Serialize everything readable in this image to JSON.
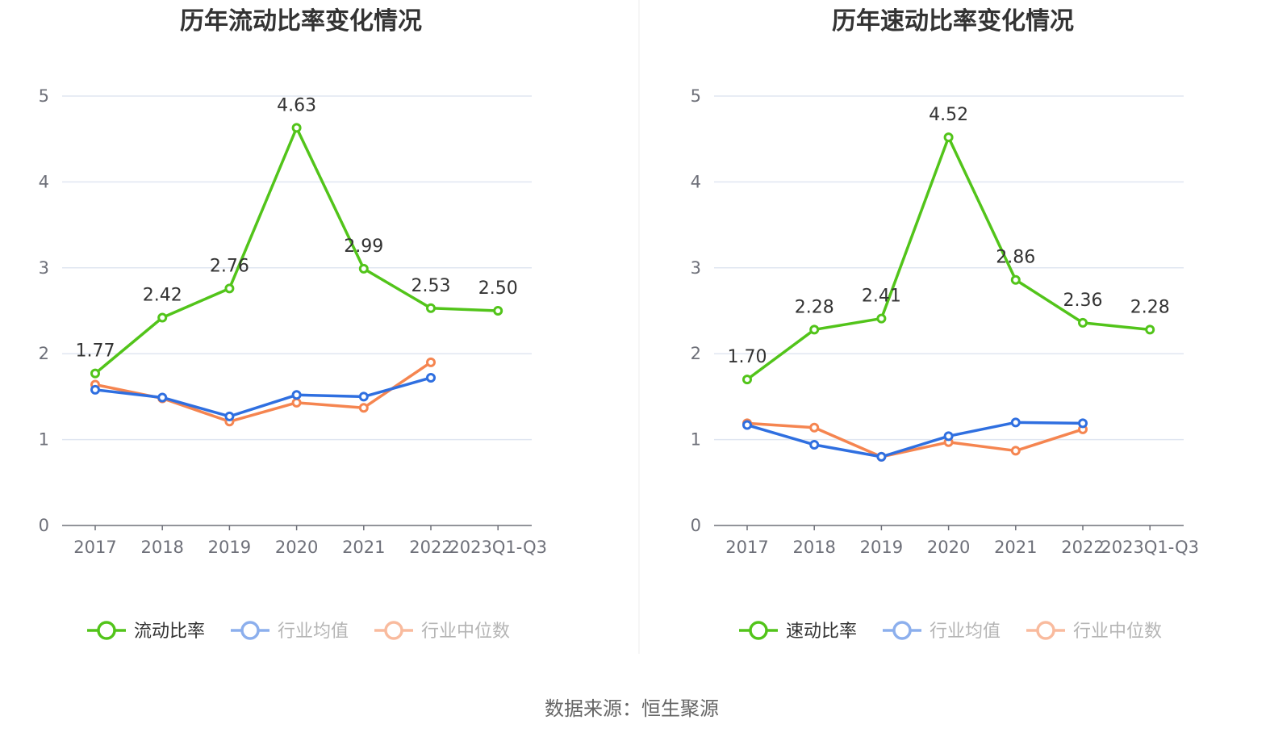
{
  "source": "数据来源：恒生聚源",
  "colors": {
    "main": "#52c41a",
    "avg": "#2f6fe0",
    "median": "#f58550",
    "grid": "#e0e6f1",
    "axis": "#6e7079"
  },
  "chart_data": [
    {
      "type": "line",
      "title": "历年流动比率变化情况",
      "categories": [
        "2017",
        "2018",
        "2019",
        "2020",
        "2021",
        "2022",
        "2023Q1-Q3"
      ],
      "ylim": [
        0,
        5
      ],
      "yticks": [
        "0",
        "1",
        "2",
        "3",
        "4",
        "5"
      ],
      "grid": true,
      "legend_position": "bottom",
      "series": [
        {
          "name": "流动比率",
          "values": [
            1.77,
            2.42,
            2.76,
            4.63,
            2.99,
            2.53,
            2.5
          ],
          "labels": [
            "1.77",
            "2.42",
            "2.76",
            "4.63",
            "2.99",
            "2.53",
            "2.50"
          ]
        },
        {
          "name": "行业均值",
          "values": [
            1.58,
            1.49,
            1.27,
            1.52,
            1.5,
            1.72,
            null
          ]
        },
        {
          "name": "行业中位数",
          "values": [
            1.64,
            1.48,
            1.21,
            1.43,
            1.37,
            1.9,
            null
          ]
        }
      ]
    },
    {
      "type": "line",
      "title": "历年速动比率变化情况",
      "categories": [
        "2017",
        "2018",
        "2019",
        "2020",
        "2021",
        "2022",
        "2023Q1-Q3"
      ],
      "ylim": [
        0,
        5
      ],
      "yticks": [
        "0",
        "1",
        "2",
        "3",
        "4",
        "5"
      ],
      "grid": true,
      "legend_position": "bottom",
      "series": [
        {
          "name": "速动比率",
          "values": [
            1.7,
            2.28,
            2.41,
            4.52,
            2.86,
            2.36,
            2.28
          ],
          "labels": [
            "1.70",
            "2.28",
            "2.41",
            "4.52",
            "2.86",
            "2.36",
            "2.28"
          ]
        },
        {
          "name": "行业均值",
          "values": [
            1.17,
            0.94,
            0.8,
            1.04,
            1.2,
            1.19,
            null
          ]
        },
        {
          "name": "行业中位数",
          "values": [
            1.19,
            1.14,
            0.8,
            0.97,
            0.87,
            1.12,
            null
          ]
        }
      ]
    }
  ]
}
